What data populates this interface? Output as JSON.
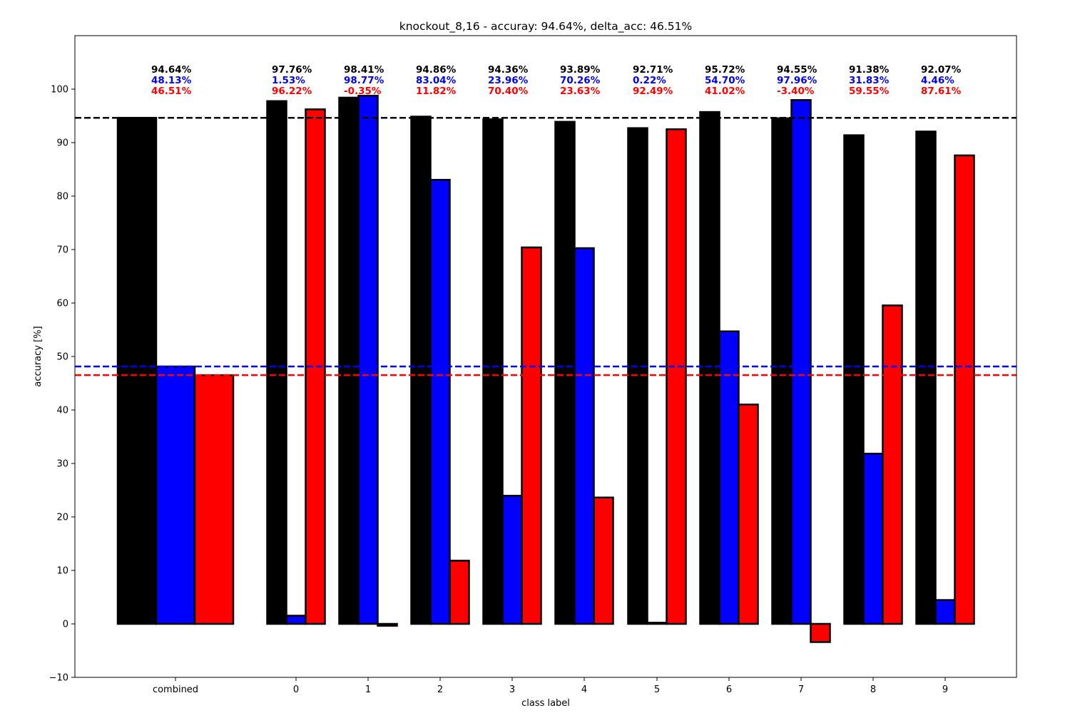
{
  "chart_data": {
    "type": "bar",
    "title": "knockout_8,16 - accuray: 94.64%, delta_acc: 46.51%",
    "xlabel": "class label",
    "ylabel": "accuracy [%]",
    "ylim": [
      -10,
      110
    ],
    "yticks": [
      -10,
      0,
      10,
      20,
      30,
      40,
      50,
      60,
      70,
      80,
      90,
      100
    ],
    "grid": false,
    "categories": [
      "combined",
      "0",
      "1",
      "2",
      "3",
      "4",
      "5",
      "6",
      "7",
      "8",
      "9"
    ],
    "series": [
      {
        "color": "#000000",
        "values": [
          94.64,
          97.76,
          98.41,
          94.86,
          94.36,
          93.89,
          92.71,
          95.72,
          94.55,
          91.38,
          92.07
        ],
        "labels": [
          "94.64%",
          "97.76%",
          "98.41%",
          "94.86%",
          "94.36%",
          "93.89%",
          "92.71%",
          "95.72%",
          "94.55%",
          "91.38%",
          "92.07%"
        ]
      },
      {
        "color": "#0000ff",
        "values": [
          48.13,
          1.53,
          98.77,
          83.04,
          23.96,
          70.26,
          0.22,
          54.7,
          97.96,
          31.83,
          4.46
        ],
        "labels": [
          "48.13%",
          "1.53%",
          "98.77%",
          "83.04%",
          "23.96%",
          "70.26%",
          "0.22%",
          "54.70%",
          "97.96%",
          "31.83%",
          "4.46%"
        ]
      },
      {
        "color": "#ff0000",
        "values": [
          46.51,
          96.22,
          -0.35,
          11.82,
          70.4,
          23.63,
          92.49,
          41.02,
          -3.4,
          59.55,
          87.61
        ],
        "labels": [
          "46.51%",
          "96.22%",
          "-0.35%",
          "11.82%",
          "70.40%",
          "23.63%",
          "92.49%",
          "41.02%",
          "-3.40%",
          "59.55%",
          "87.61%"
        ]
      }
    ],
    "reference_lines": [
      {
        "value": 94.64,
        "color": "#000000",
        "style": "dashed"
      },
      {
        "value": 48.13,
        "color": "#0000ff",
        "style": "dashed"
      },
      {
        "value": 46.51,
        "color": "#ff0000",
        "style": "dashed"
      }
    ]
  }
}
